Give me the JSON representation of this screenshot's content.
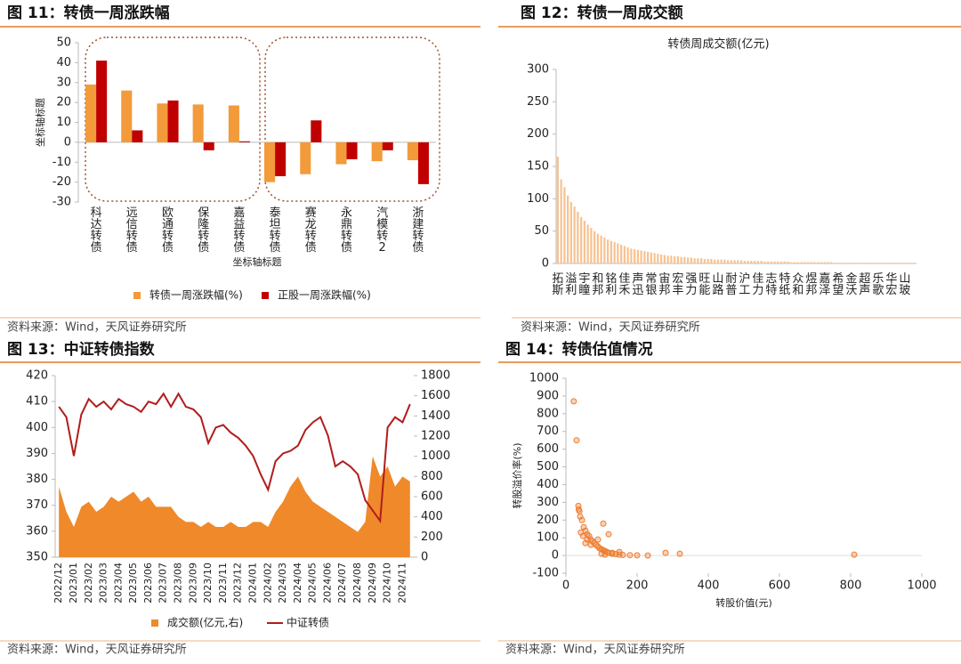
{
  "chart_data": [
    {
      "type": "bar",
      "title": "图 11：转债一周涨跌幅",
      "source": "资料来源：Wind，天风证券研究所",
      "categories": [
        "科达转债",
        "远信转债",
        "欧通转债",
        "保隆转债",
        "嘉益转债",
        "泰坦转债",
        "赛龙转债",
        "永鼎转债",
        "汽模转2",
        "浙建转债"
      ],
      "series": [
        {
          "name": "转债一周涨跌幅(%)",
          "color": "#f39a3a",
          "values": [
            29,
            26,
            19.5,
            19,
            18.5,
            -20,
            -16,
            -11,
            -9.5,
            -9
          ]
        },
        {
          "name": "正股一周涨跌幅(%)",
          "color": "#c00000",
          "values": [
            41,
            6,
            21,
            -4,
            0.5,
            -17,
            11,
            -8.5,
            -4,
            -21
          ]
        }
      ],
      "xlabel": "坐标轴标题",
      "ylabel": "坐标轴标题",
      "ylim": [
        -30,
        50
      ],
      "yticks": [
        -30,
        -20,
        -10,
        0,
        10,
        20,
        30,
        40,
        50
      ]
    },
    {
      "type": "bar",
      "title": "图 12：转债一周成交额",
      "subtitle": "转债周成交额(亿元)",
      "source": "资料来源：Wind，天风证券研究所",
      "categories": [
        "拓斯",
        null,
        null,
        null,
        "溢利",
        null,
        null,
        null,
        "宇瞳",
        null,
        null,
        null,
        "和邦",
        null,
        null,
        null,
        "铭利",
        null,
        null,
        null,
        "佳禾",
        null,
        null,
        null,
        "声迅",
        null,
        null,
        null,
        "常银",
        null,
        null,
        null,
        "宙邦",
        null,
        null,
        null,
        "宏丰",
        null,
        null,
        null,
        "强力",
        null,
        null,
        null,
        "旺能",
        null,
        null,
        null,
        "山路",
        null,
        null,
        null,
        "耐普",
        null,
        null,
        null,
        "沪工",
        null,
        null,
        null,
        "佳力",
        null,
        null,
        null,
        "志特",
        null,
        null,
        null,
        "特纸",
        null,
        null,
        null,
        "众和",
        null,
        null,
        null,
        "煜邦",
        null,
        null,
        null,
        "嘉泽",
        null,
        null,
        null,
        "希望",
        null,
        null,
        null,
        "金沃",
        null,
        null,
        null,
        "超声",
        null,
        null,
        null,
        "乐歌",
        null,
        null,
        null,
        "华宏",
        null,
        null,
        null,
        "山玻",
        null,
        null,
        null
      ],
      "values": [
        165,
        130,
        118,
        105,
        95,
        88,
        80,
        72,
        66,
        60,
        55,
        50,
        46,
        43,
        40,
        37,
        35,
        33,
        31,
        29,
        27,
        25,
        23,
        22,
        21,
        20,
        19,
        18,
        17,
        16,
        15,
        14,
        13,
        12,
        12,
        11,
        11,
        10,
        10,
        9,
        9,
        8,
        8,
        8,
        7,
        7,
        7,
        6,
        6,
        6,
        6,
        5,
        5,
        5,
        5,
        5,
        4,
        4,
        4,
        4,
        4,
        4,
        3,
        3,
        3,
        3,
        3,
        3,
        3,
        3,
        2,
        2,
        2,
        2,
        2,
        2,
        2,
        2,
        2,
        2,
        2,
        2,
        2,
        1,
        1,
        1,
        1,
        1,
        1,
        1,
        1,
        1,
        1,
        1,
        1,
        1,
        1,
        1,
        1,
        1,
        1,
        1,
        1,
        1,
        1,
        1,
        1,
        1
      ],
      "color": "#f7c393",
      "ylim": [
        0,
        300
      ],
      "yticks": [
        0,
        50,
        100,
        150,
        200,
        250,
        300
      ]
    },
    {
      "type": "combo",
      "title": "图 13：中证转债指数",
      "source": "资料来源：Wind，天风证券研究所",
      "categories": [
        "2022/12",
        null,
        "2023/01",
        null,
        "2023/02",
        null,
        "2023/03",
        null,
        "2023/04",
        null,
        "2023/05",
        null,
        "2023/06",
        null,
        "2023/07",
        null,
        "2023/08",
        null,
        "2023/09",
        null,
        "2023/10",
        null,
        "2023/11",
        null,
        "2023/12",
        null,
        "2024/01",
        null,
        "2024/02",
        null,
        "2024/03",
        null,
        "2024/04",
        null,
        "2024/05",
        null,
        "2024/06",
        null,
        "2024/07",
        null,
        "2024/08",
        null,
        "2024/09",
        null,
        "2024/10",
        null,
        "2024/11",
        null
      ],
      "series": [
        {
          "name": "成交额(亿元,右)",
          "color": "#f0892a",
          "kind": "area",
          "axis": "y2",
          "values": [
            700,
            450,
            300,
            500,
            550,
            450,
            500,
            600,
            550,
            600,
            650,
            550,
            600,
            500,
            500,
            500,
            400,
            350,
            350,
            300,
            350,
            300,
            300,
            350,
            300,
            300,
            350,
            350,
            300,
            450,
            550,
            700,
            800,
            650,
            550,
            500,
            450,
            400,
            350,
            300,
            250,
            350,
            1000,
            800,
            900,
            700,
            800,
            750
          ]
        },
        {
          "name": "中证转债",
          "color": "#b01c1c",
          "kind": "line",
          "values": [
            408,
            404,
            389,
            405,
            411,
            408,
            410,
            407,
            411,
            409,
            408,
            406,
            410,
            409,
            413,
            408,
            413,
            408,
            407,
            404,
            394,
            400,
            401,
            398,
            396,
            393,
            389,
            382,
            376,
            387,
            390,
            391,
            393,
            399,
            402,
            404,
            397,
            385,
            387,
            385,
            382,
            372,
            368,
            364,
            400,
            404,
            402,
            409
          ]
        }
      ],
      "ylim": [
        350,
        420
      ],
      "yticks": [
        350,
        360,
        370,
        380,
        390,
        400,
        410,
        420
      ],
      "y2lim": [
        0,
        1800
      ],
      "y2ticks": [
        0,
        200,
        400,
        600,
        800,
        1000,
        1200,
        1400,
        1600,
        1800
      ]
    },
    {
      "type": "scatter",
      "title": "图 14：转债估值情况",
      "source": "资料来源：Wind，天风证券研究所",
      "x": [
        22,
        30,
        35,
        38,
        40,
        45,
        50,
        55,
        60,
        65,
        70,
        75,
        80,
        85,
        90,
        95,
        100,
        105,
        110,
        115,
        120,
        130,
        140,
        150,
        160,
        180,
        200,
        230,
        280,
        320,
        810,
        105,
        120,
        90,
        70,
        60,
        55,
        100,
        110,
        130,
        150,
        48,
        42,
        36
      ],
      "values": [
        870,
        650,
        280,
        250,
        220,
        200,
        160,
        140,
        120,
        110,
        90,
        80,
        70,
        60,
        50,
        40,
        35,
        30,
        25,
        20,
        15,
        10,
        8,
        5,
        3,
        2,
        1,
        0,
        15,
        10,
        5,
        180,
        120,
        90,
        60,
        90,
        70,
        10,
        5,
        15,
        20,
        110,
        130,
        260
      ],
      "color": "#ed7d31",
      "xlabel": "转股价值(元)",
      "ylabel": "转股溢价率(%)",
      "xlim": [
        0,
        1000
      ],
      "xticks": [
        0,
        200,
        400,
        600,
        800,
        1000
      ],
      "ylim": [
        -100,
        1000
      ],
      "yticks": [
        -100,
        0,
        100,
        200,
        300,
        400,
        500,
        600,
        700,
        800,
        900,
        1000
      ]
    }
  ]
}
